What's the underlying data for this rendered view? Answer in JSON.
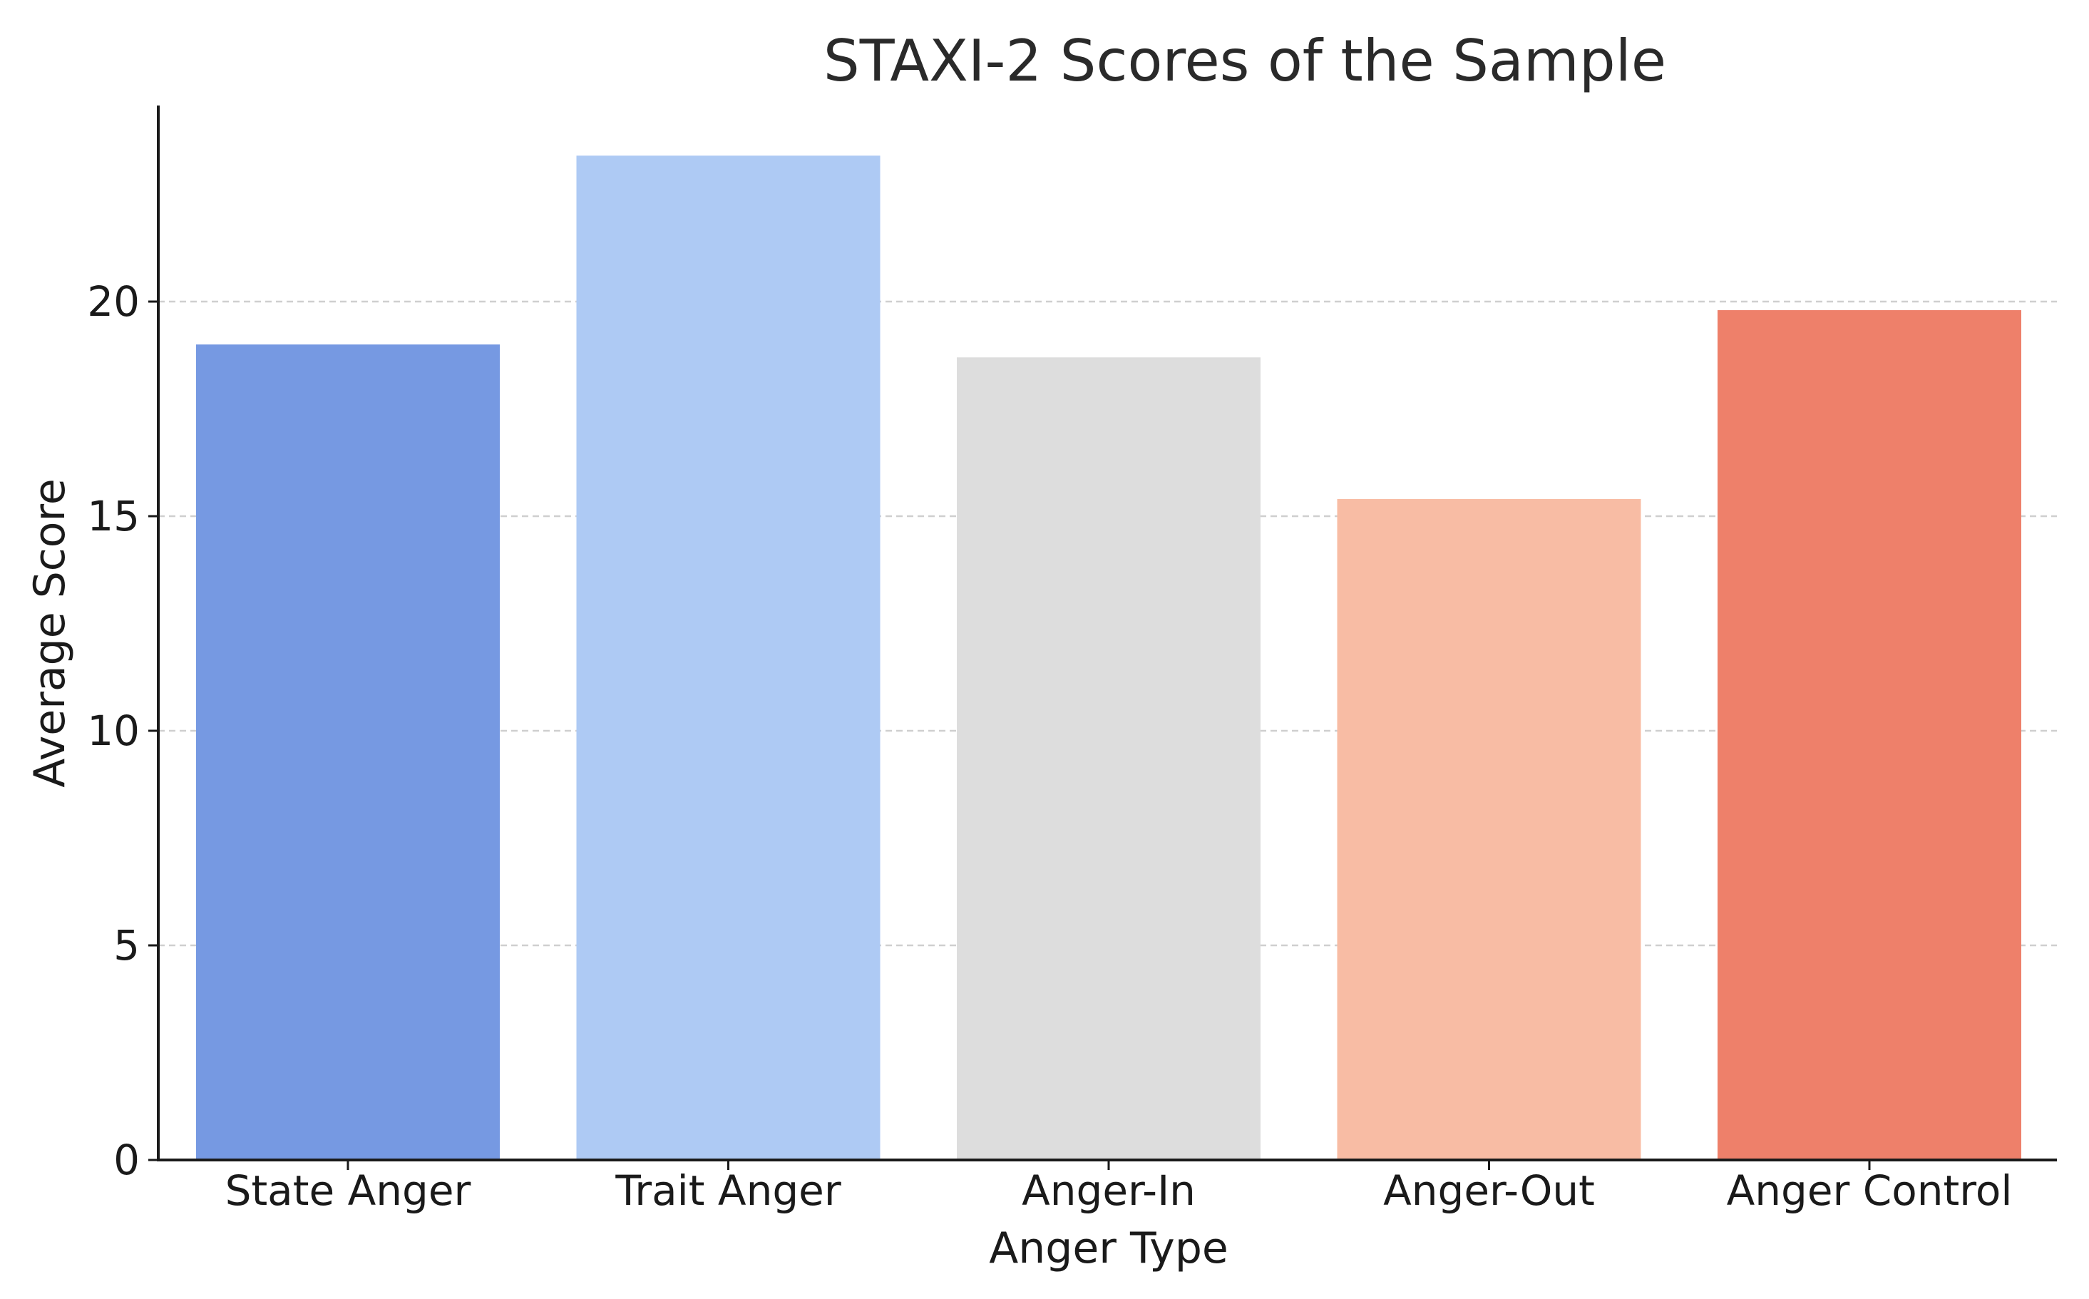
{
  "chart_data": {
    "type": "bar",
    "title": "STAXI-2 Scores of the Sample",
    "xlabel": "Anger Type",
    "ylabel": "Average Score",
    "categories": [
      "State Anger",
      "Trait Anger",
      "Anger-In",
      "Anger-Out",
      "Anger Control"
    ],
    "values": [
      19.0,
      23.4,
      18.7,
      15.4,
      19.8
    ],
    "colors": [
      "#7699e2",
      "#aecaf4",
      "#dddddd",
      "#f8bca4",
      "#ee806a"
    ],
    "yticks": [
      0,
      5,
      10,
      15,
      20
    ],
    "ytick_labels": [
      "0",
      "5",
      "10",
      "15",
      "20"
    ],
    "ylim": [
      0,
      24.5
    ],
    "grid": "y-dashed",
    "legend": "none"
  }
}
